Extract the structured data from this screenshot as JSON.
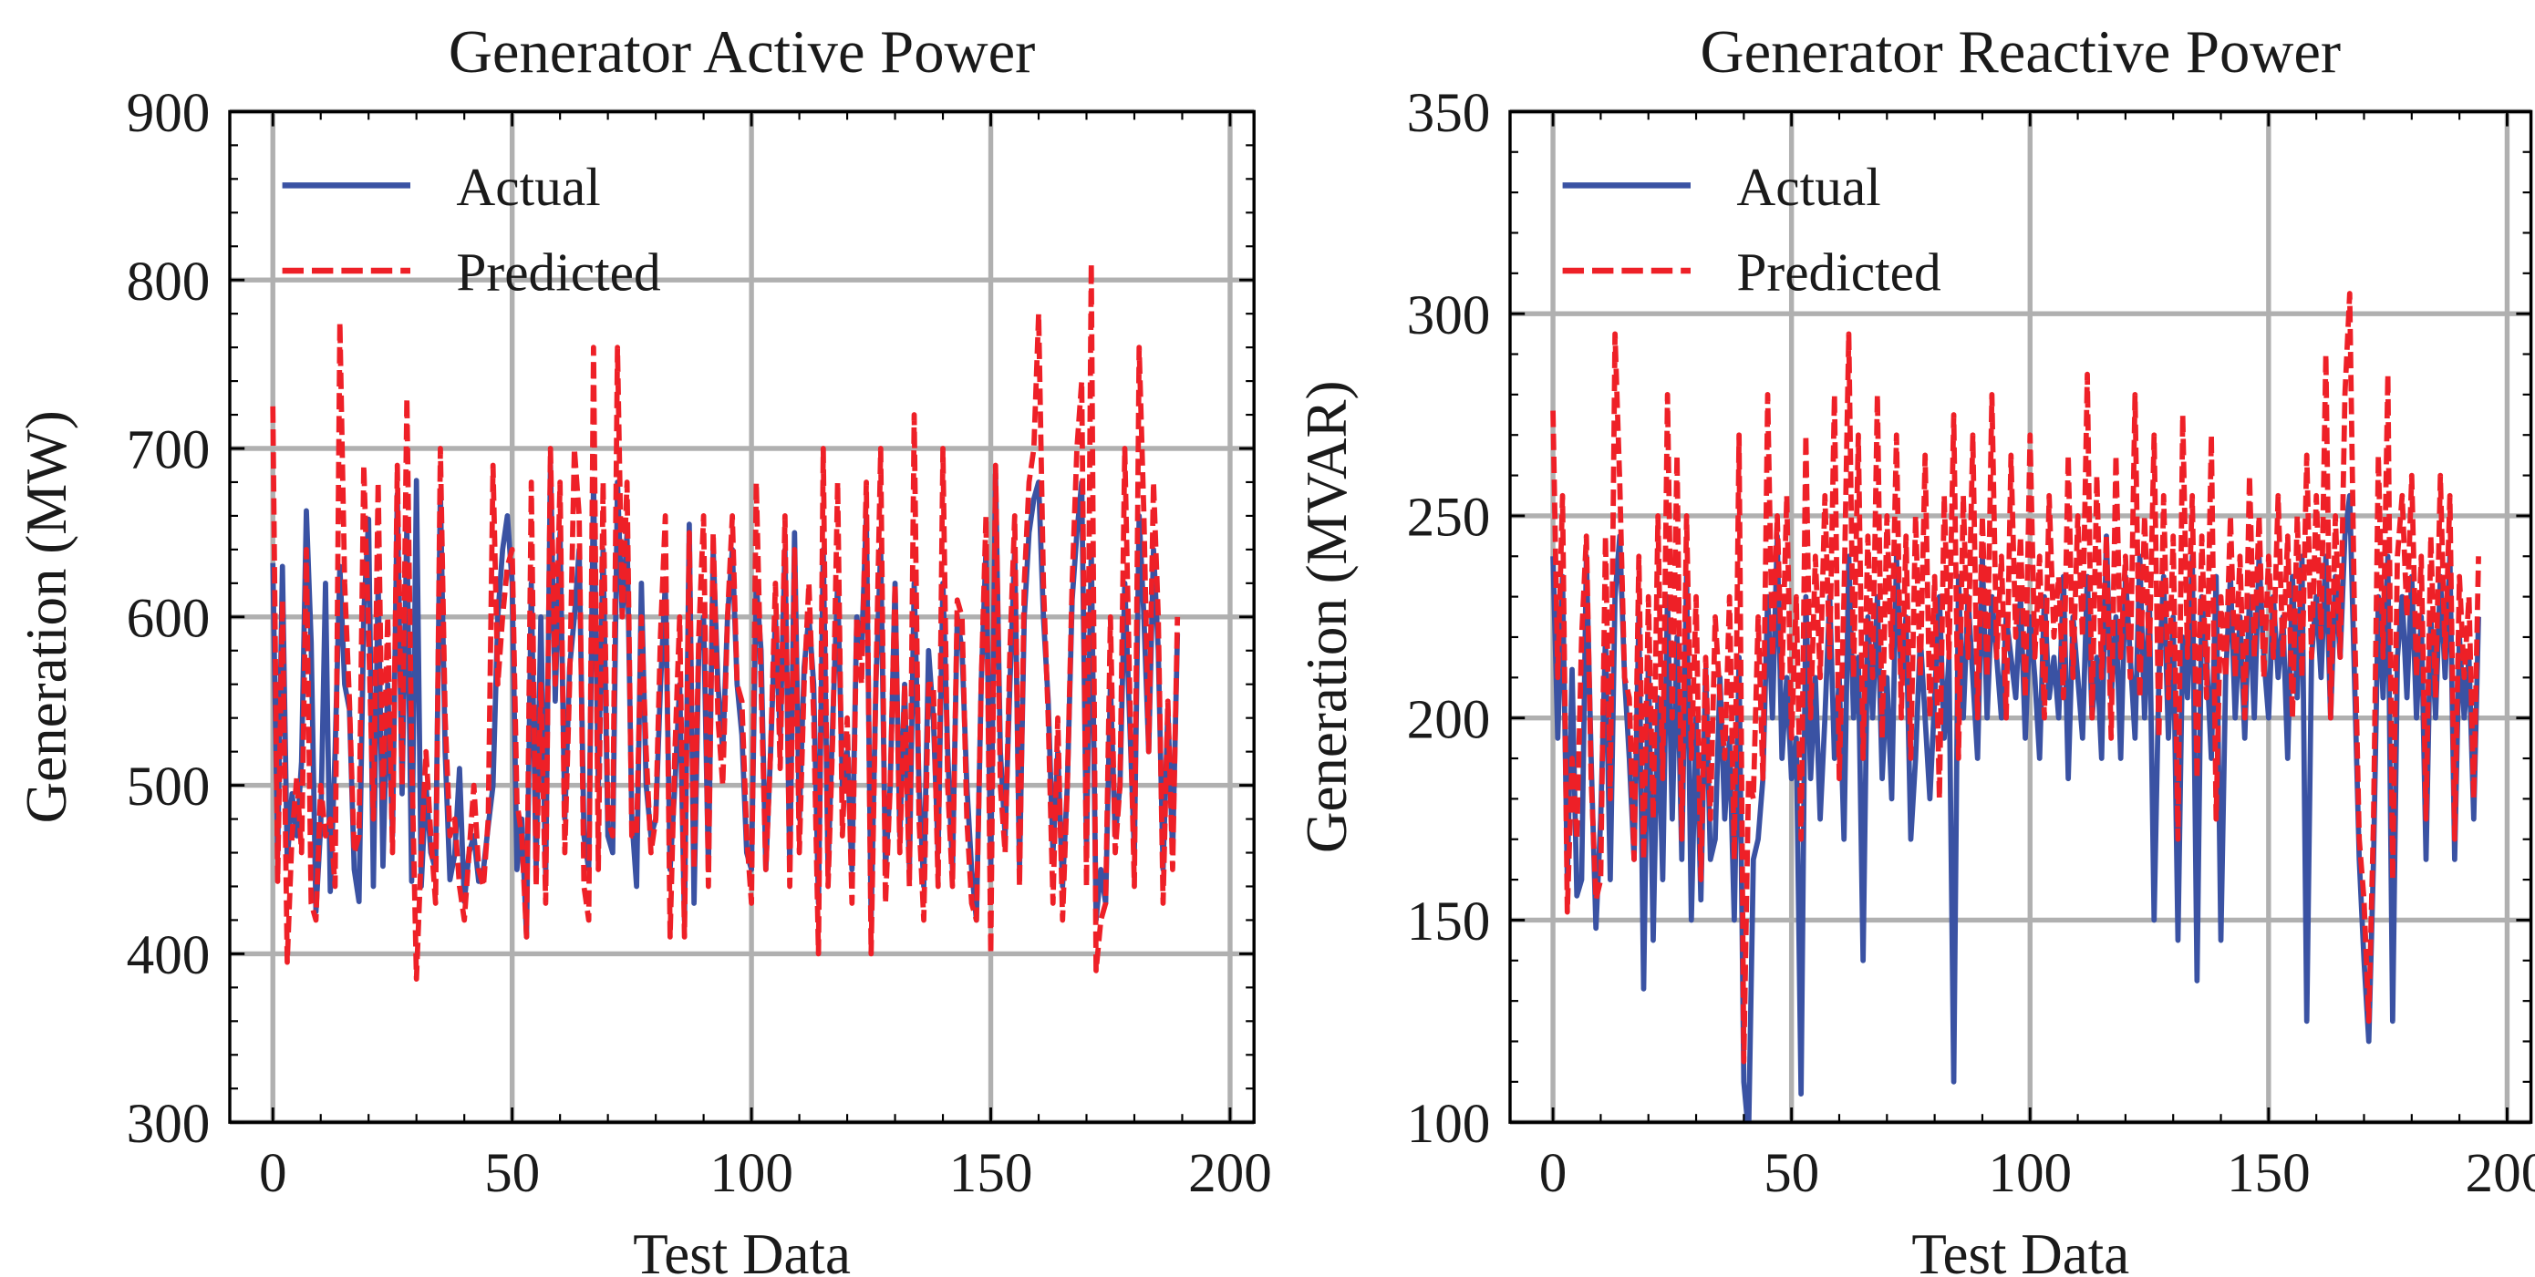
{
  "colors": {
    "actual": "#3a52a3",
    "predicted": "#ee2027"
  },
  "legend": {
    "actual": "Actual",
    "predicted": "Predicted",
    "placement": "top-left"
  },
  "chart_data": [
    {
      "type": "line",
      "title": "Generator Active Power",
      "xlabel": "Test Data",
      "ylabel": "Generation (MW)",
      "xlim": [
        -9,
        205
      ],
      "ylim": [
        300,
        900
      ],
      "xticks": [
        0,
        50,
        100,
        150,
        200
      ],
      "yticks": [
        300,
        400,
        500,
        600,
        700,
        800,
        900
      ],
      "xtick_labels": [
        "0",
        "50",
        "100",
        "150",
        "200"
      ],
      "ytick_labels": [
        "300",
        "400",
        "500",
        "600",
        "700",
        "800",
        "900"
      ],
      "grid": true,
      "series": [
        {
          "name": "Actual",
          "values": [
            632,
            459,
            630,
            455,
            495,
            470,
            514,
            663,
            585,
            425,
            476,
            620,
            437,
            520,
            630,
            560,
            545,
            450,
            431,
            602,
            658,
            440,
            621,
            452,
            560,
            470,
            673,
            495,
            655,
            443,
            681,
            440,
            500,
            460,
            450,
            675,
            520,
            444,
            459,
            510,
            431,
            460,
            470,
            443,
            450,
            476,
            500,
            600,
            640,
            660,
            620,
            450,
            480,
            410,
            620,
            450,
            600,
            445,
            690,
            550,
            650,
            480,
            570,
            600,
            640,
            470,
            450,
            680,
            500,
            640,
            470,
            460,
            680,
            600,
            650,
            480,
            440,
            620,
            500,
            470,
            480,
            560,
            620,
            450,
            500,
            560,
            420,
            655,
            430,
            580,
            600,
            450,
            640,
            560,
            520,
            600,
            640,
            560,
            530,
            460,
            450,
            620,
            580,
            450,
            520,
            600,
            530,
            640,
            450,
            650,
            480,
            570,
            600,
            560,
            430,
            640,
            450,
            540,
            620,
            500,
            520,
            450,
            600,
            580,
            660,
            420,
            560,
            640,
            450,
            500,
            620,
            470,
            560,
            450,
            620,
            500,
            440,
            580,
            540,
            460,
            620,
            520,
            450,
            600,
            580,
            500,
            450,
            420,
            560,
            640,
            450,
            685,
            520,
            470,
            560,
            640,
            450,
            600,
            650,
            670,
            680,
            600,
            550,
            460,
            520,
            440,
            500,
            610,
            650,
            680,
            460,
            640,
            420,
            450,
            430,
            560,
            470,
            500,
            620,
            540,
            460,
            660,
            600,
            520,
            640,
            580,
            450,
            545,
            460,
            590
          ]
        },
        {
          "name": "Predicted",
          "values": [
            725,
            443,
            610,
            395,
            470,
            505,
            460,
            640,
            430,
            420,
            500,
            470,
            480,
            440,
            775,
            620,
            550,
            460,
            470,
            690,
            590,
            480,
            680,
            490,
            600,
            460,
            690,
            500,
            730,
            520,
            385,
            460,
            520,
            470,
            430,
            700,
            540,
            470,
            480,
            440,
            420,
            460,
            500,
            450,
            440,
            480,
            690,
            560,
            600,
            630,
            640,
            490,
            470,
            410,
            680,
            440,
            560,
            430,
            700,
            560,
            680,
            460,
            560,
            700,
            660,
            440,
            420,
            760,
            450,
            680,
            480,
            470,
            760,
            600,
            680,
            470,
            470,
            600,
            520,
            460,
            480,
            590,
            660,
            410,
            520,
            600,
            410,
            650,
            450,
            590,
            660,
            440,
            650,
            540,
            500,
            600,
            660,
            560,
            550,
            470,
            430,
            680,
            560,
            450,
            520,
            620,
            510,
            660,
            440,
            640,
            460,
            560,
            620,
            540,
            400,
            700,
            440,
            530,
            680,
            470,
            540,
            430,
            600,
            560,
            680,
            400,
            560,
            700,
            430,
            500,
            620,
            460,
            560,
            440,
            720,
            480,
            420,
            560,
            560,
            440,
            700,
            500,
            440,
            610,
            600,
            480,
            430,
            420,
            560,
            660,
            400,
            690,
            500,
            460,
            580,
            660,
            440,
            620,
            680,
            700,
            780,
            620,
            540,
            430,
            540,
            420,
            500,
            620,
            700,
            740,
            440,
            810,
            390,
            420,
            430,
            600,
            460,
            500,
            700,
            560,
            440,
            760,
            660,
            520,
            680,
            600,
            430,
            550,
            450,
            600
          ]
        }
      ]
    },
    {
      "type": "line",
      "title": "Generator Reactive Power",
      "xlabel": "Test Data",
      "ylabel": "Generation (MVAR)",
      "xlim": [
        -9,
        205
      ],
      "ylim": [
        100,
        350
      ],
      "xticks": [
        0,
        50,
        100,
        150,
        200
      ],
      "yticks": [
        100,
        150,
        200,
        250,
        300,
        350
      ],
      "xtick_labels": [
        "0",
        "50",
        "100",
        "150",
        "200"
      ],
      "ytick_labels": [
        "100",
        "150",
        "200",
        "250",
        "300",
        "350"
      ],
      "grid": true,
      "series": [
        {
          "name": "Actual",
          "values": [
            240,
            195,
            235,
            160,
            212,
            156,
            160,
            240,
            190,
            148,
            175,
            220,
            160,
            230,
            245,
            210,
            190,
            165,
            225,
            133,
            215,
            145,
            205,
            160,
            230,
            175,
            220,
            165,
            235,
            150,
            200,
            155,
            212,
            165,
            170,
            210,
            175,
            195,
            150,
            215,
            110,
            97,
            165,
            170,
            185,
            230,
            200,
            245,
            190,
            210,
            185,
            195,
            107,
            230,
            185,
            210,
            175,
            200,
            230,
            190,
            210,
            170,
            240,
            200,
            215,
            140,
            225,
            200,
            230,
            185,
            210,
            180,
            240,
            210,
            225,
            170,
            190,
            220,
            200,
            180,
            205,
            230,
            195,
            215,
            110,
            235,
            200,
            230,
            210,
            190,
            240,
            200,
            230,
            215,
            200,
            225,
            215,
            205,
            230,
            195,
            225,
            210,
            190,
            230,
            205,
            215,
            200,
            235,
            185,
            225,
            210,
            195,
            235,
            200,
            215,
            190,
            245,
            205,
            225,
            190,
            235,
            215,
            195,
            240,
            200,
            230,
            150,
            210,
            235,
            195,
            225,
            145,
            220,
            205,
            240,
            135,
            230,
            215,
            190,
            235,
            145,
            210,
            235,
            200,
            225,
            195,
            230,
            200,
            240,
            215,
            200,
            230,
            210,
            225,
            190,
            235,
            205,
            240,
            125,
            215,
            230,
            210,
            240,
            200,
            235,
            215,
            245,
            255,
            210,
            165,
            140,
            120,
            165,
            230,
            205,
            240,
            125,
            215,
            230,
            205,
            235,
            200,
            225,
            165,
            225,
            200,
            235,
            210,
            240,
            165,
            220,
            200,
            215,
            175,
            225
          ]
        },
        {
          "name": "Predicted",
          "values": [
            276,
            210,
            255,
            152,
            190,
            170,
            220,
            245,
            185,
            155,
            160,
            245,
            180,
            295,
            258,
            210,
            205,
            165,
            240,
            165,
            230,
            175,
            250,
            185,
            280,
            200,
            265,
            170,
            250,
            190,
            230,
            160,
            215,
            175,
            225,
            205,
            190,
            230,
            165,
            270,
            115,
            185,
            180,
            225,
            185,
            280,
            215,
            250,
            210,
            255,
            195,
            230,
            170,
            270,
            200,
            240,
            210,
            255,
            215,
            280,
            185,
            230,
            295,
            210,
            270,
            190,
            245,
            210,
            280,
            195,
            250,
            215,
            270,
            200,
            245,
            190,
            250,
            210,
            265,
            200,
            235,
            180,
            255,
            215,
            275,
            190,
            255,
            215,
            270,
            200,
            250,
            210,
            280,
            215,
            240,
            200,
            265,
            220,
            245,
            205,
            270,
            215,
            240,
            200,
            255,
            220,
            235,
            205,
            265,
            210,
            250,
            220,
            285,
            200,
            260,
            210,
            245,
            195,
            265,
            215,
            240,
            210,
            280,
            205,
            250,
            215,
            270,
            195,
            255,
            205,
            245,
            170,
            275,
            215,
            255,
            185,
            245,
            205,
            270,
            175,
            230,
            210,
            250,
            210,
            240,
            200,
            260,
            215,
            250,
            210,
            240,
            215,
            255,
            215,
            245,
            200,
            250,
            210,
            265,
            215,
            255,
            220,
            290,
            200,
            250,
            215,
            280,
            305,
            225,
            170,
            155,
            125,
            175,
            265,
            215,
            285,
            160,
            240,
            255,
            225,
            260,
            210,
            240,
            175,
            245,
            205,
            260,
            215,
            255,
            170,
            235,
            210,
            230,
            180,
            240
          ]
        }
      ]
    }
  ]
}
